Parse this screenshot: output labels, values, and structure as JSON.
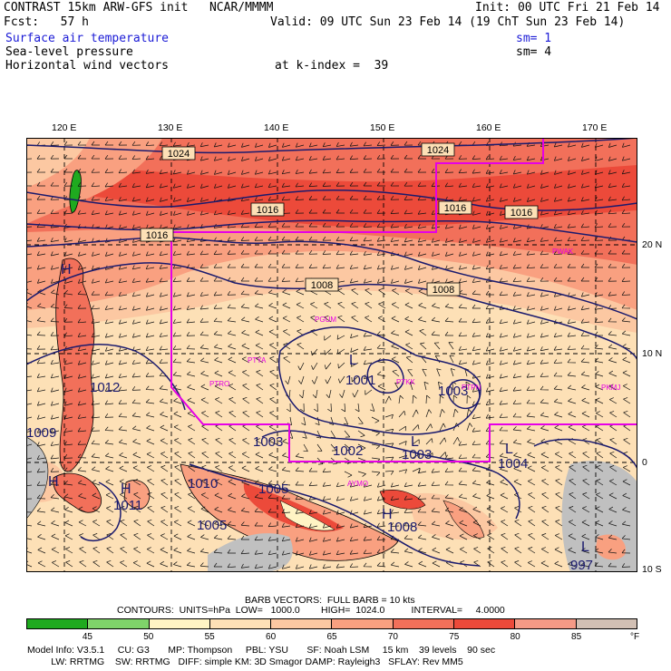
{
  "header": {
    "title": "CONTRAST 15km ARW-GFS init   NCAR/MMMM",
    "init": "Init: 00 UTC Fri 21 Feb 14",
    "fcst": "Fcst:   57 h",
    "valid": "Valid: 09 UTC Sun 23 Feb 14 (19 ChT Sun 23 Feb 14)",
    "field1": "Surface air temperature",
    "field1_sm": "sm= 1",
    "field2": "Sea-level pressure",
    "field2_sm": "sm= 4",
    "field3": "Horizontal wind vectors",
    "k_index": "at k-index =  39"
  },
  "colors": {
    "field1_text": "#1b1bd6",
    "boundary": "#e600e6",
    "contour": "#1a1a6e",
    "land": "#c0c0c0"
  },
  "axes": {
    "top_labels": [
      "120 E",
      "130 E",
      "140 E",
      "150 E",
      "160 E",
      "170 E"
    ],
    "right_labels": [
      "20 N",
      "10 N",
      "0",
      "10 S"
    ]
  },
  "map_labels": {
    "isobars": [
      "1024",
      "1024",
      "1016",
      "1016",
      "1016",
      "1016",
      "1008",
      "1008",
      "1001",
      "1003",
      "1003",
      "1002",
      "1003",
      "1004",
      "1010",
      "1005",
      "1008",
      "1005",
      "997",
      "1011",
      "1012",
      "1009"
    ],
    "stations": [
      "PWAK",
      "PGUM",
      "PTYA",
      "PTRO",
      "PTKK",
      "PTPN",
      "PKMJ",
      "AYMO"
    ],
    "highs_lows": [
      "H",
      "L",
      "L",
      "L",
      "L",
      "H",
      "H",
      "H"
    ]
  },
  "footer": {
    "barb_title": "BARB VECTORS:  FULL BARB = 10 kts",
    "contours": "CONTOURS:  UNITS=hPa  LOW=   1000.0        HIGH=  1024.0          INTERVAL=     4.0000",
    "legend_colors": [
      "#1faa1f",
      "#7fd36a",
      "#fff4c4",
      "#fde0b6",
      "#fcc8a2",
      "#f9a080",
      "#f2705a",
      "#ec4a3a",
      "#f59a86",
      "#d2c0b4"
    ],
    "legend_labels": [
      "45",
      "50",
      "55",
      "60",
      "65",
      "70",
      "75",
      "80",
      "85"
    ],
    "legend_unit": "°F",
    "model_line1": "Model Info: V3.5.1     CU: G3       MP: Thompson     PBL: YSU       SF: Noah LSM     15 km    39 levels    90 sec",
    "model_line2": "         LW: RRTMG    SW: RRTMG   DIFF: simple KM: 3D Smagor DAMP: Rayleigh3   SFLAY: Rev MM5"
  }
}
